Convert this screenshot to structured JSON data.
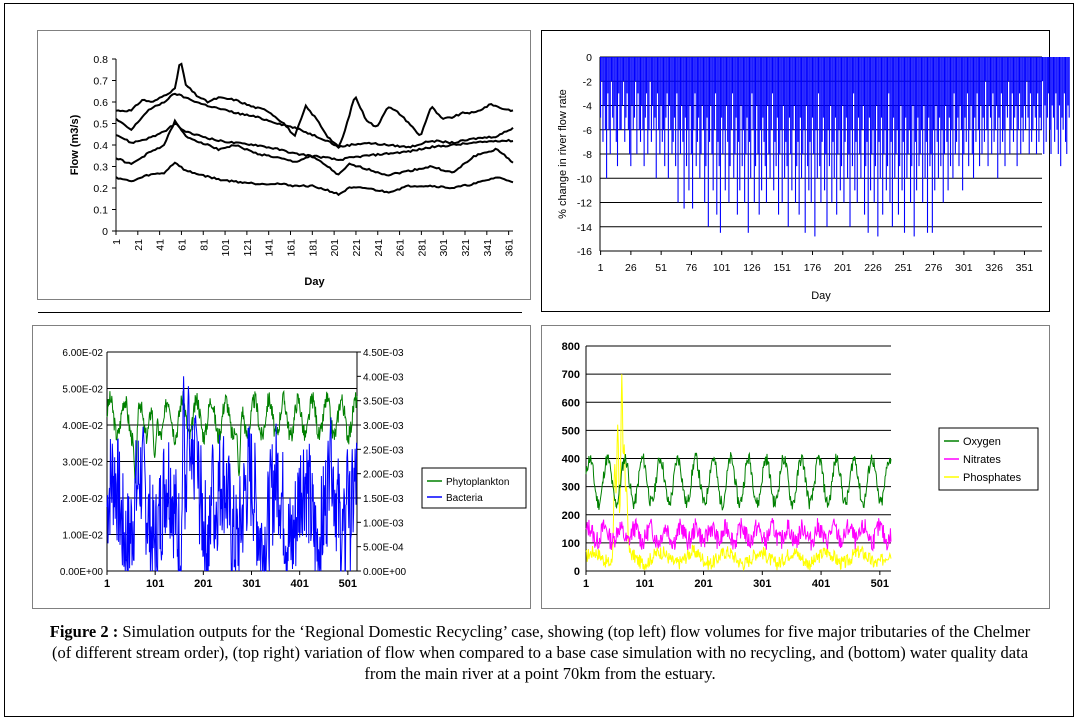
{
  "caption": {
    "label": "Figure 2 :",
    "text": " Simulation outputs for the ‘Regional Domestic Recycling’ case, showing  (top left) flow volumes for five major tributaries of the Chelmer (of different stream order), (top right) variation of flow when compared to a base case simulation with no recycling, and (bottom) water quality data from the main river at a point 70km from the estuary."
  },
  "chart_data": [
    {
      "id": "flow",
      "type": "line",
      "title": "",
      "xlabel": "Day",
      "ylabel": "Flow (m3/s)",
      "ylim": [
        0,
        0.8
      ],
      "yticks": [
        "0",
        "0.1",
        "0.2",
        "0.3",
        "0.4",
        "0.5",
        "0.6",
        "0.7",
        "0.8"
      ],
      "xticks": [
        "1",
        "21",
        "41",
        "61",
        "81",
        "101",
        "121",
        "141",
        "161",
        "181",
        "201",
        "221",
        "241",
        "261",
        "281",
        "301",
        "321",
        "341",
        "361"
      ],
      "xlim": [
        1,
        365
      ],
      "grid": false,
      "color": "#000000",
      "series": [
        {
          "x": [
            1,
            15,
            25,
            35,
            45,
            55,
            60,
            65,
            75,
            85,
            95,
            110,
            125,
            140,
            155,
            165,
            175,
            185,
            195,
            205,
            210,
            220,
            230,
            240,
            250,
            260,
            270,
            280,
            290,
            300,
            310,
            320,
            330,
            345,
            355,
            365
          ],
          "values": [
            0.56,
            0.56,
            0.61,
            0.6,
            0.63,
            0.66,
            0.8,
            0.68,
            0.63,
            0.6,
            0.62,
            0.61,
            0.58,
            0.56,
            0.5,
            0.44,
            0.58,
            0.52,
            0.44,
            0.39,
            0.45,
            0.63,
            0.52,
            0.48,
            0.58,
            0.55,
            0.5,
            0.44,
            0.58,
            0.52,
            0.53,
            0.55,
            0.55,
            0.59,
            0.57,
            0.56
          ]
        },
        {
          "x": [
            1,
            15,
            30,
            45,
            55,
            65,
            80,
            95,
            110,
            130,
            150,
            165,
            180,
            195,
            205,
            215,
            230,
            250,
            270,
            290,
            310,
            330,
            350,
            365
          ],
          "values": [
            0.52,
            0.47,
            0.56,
            0.6,
            0.64,
            0.62,
            0.59,
            0.57,
            0.55,
            0.53,
            0.5,
            0.48,
            0.45,
            0.42,
            0.39,
            0.4,
            0.41,
            0.4,
            0.39,
            0.42,
            0.41,
            0.43,
            0.44,
            0.48
          ]
        },
        {
          "x": [
            1,
            15,
            30,
            45,
            55,
            65,
            80,
            95,
            110,
            130,
            150,
            165,
            180,
            195,
            205,
            215,
            230,
            250,
            270,
            290,
            310,
            330,
            350,
            365
          ],
          "values": [
            0.45,
            0.41,
            0.43,
            0.46,
            0.5,
            0.46,
            0.44,
            0.42,
            0.41,
            0.4,
            0.38,
            0.36,
            0.35,
            0.34,
            0.33,
            0.34,
            0.35,
            0.36,
            0.37,
            0.39,
            0.4,
            0.41,
            0.42,
            0.42
          ]
        },
        {
          "x": [
            1,
            15,
            30,
            45,
            55,
            65,
            80,
            95,
            110,
            130,
            150,
            165,
            180,
            195,
            205,
            215,
            230,
            250,
            270,
            290,
            310,
            330,
            350,
            365
          ],
          "values": [
            0.34,
            0.31,
            0.36,
            0.4,
            0.51,
            0.44,
            0.41,
            0.38,
            0.4,
            0.36,
            0.34,
            0.32,
            0.35,
            0.3,
            0.26,
            0.31,
            0.29,
            0.26,
            0.28,
            0.3,
            0.27,
            0.35,
            0.38,
            0.32
          ]
        },
        {
          "x": [
            1,
            15,
            30,
            45,
            55,
            65,
            80,
            95,
            110,
            130,
            150,
            165,
            180,
            195,
            205,
            215,
            230,
            250,
            270,
            290,
            310,
            330,
            350,
            365
          ],
          "values": [
            0.25,
            0.23,
            0.26,
            0.27,
            0.32,
            0.28,
            0.26,
            0.24,
            0.23,
            0.22,
            0.22,
            0.21,
            0.21,
            0.19,
            0.17,
            0.2,
            0.2,
            0.18,
            0.21,
            0.21,
            0.2,
            0.22,
            0.25,
            0.23
          ]
        }
      ]
    },
    {
      "id": "pct",
      "type": "bar",
      "title": "",
      "xlabel": "Day",
      "ylabel": "% change in river flow rate",
      "ylim": [
        -16,
        0
      ],
      "yticks": [
        "0",
        "-2",
        "-4",
        "-6",
        "-8",
        "-10",
        "-12",
        "-14",
        "-16"
      ],
      "xticks": [
        "1",
        "26",
        "51",
        "76",
        "101",
        "126",
        "151",
        "176",
        "201",
        "226",
        "251",
        "276",
        "301",
        "326",
        "351"
      ],
      "xlim": [
        1,
        365
      ],
      "grid": "horizontal",
      "color": "#0000FF",
      "x_start": 1,
      "values": [
        -5,
        -2,
        -7,
        -4,
        -6,
        -10,
        -3,
        -6,
        -8,
        -2,
        -5,
        -6,
        -4,
        -7,
        -9,
        -3,
        -6,
        -6,
        -4,
        -2,
        -7,
        -5,
        -3,
        -6,
        -8,
        -9,
        -4,
        -6,
        -5,
        -2,
        -8,
        -3,
        -6,
        -7,
        -4,
        -6,
        -9,
        -5,
        -3,
        -8,
        -6,
        -2,
        -7,
        -4,
        -6,
        -5,
        -10,
        -3,
        -6,
        -8,
        -4,
        -7,
        -6,
        -9,
        -5,
        -3,
        -10,
        -4,
        -6,
        -8,
        -7,
        -5,
        -9,
        -3,
        -12,
        -6,
        -8,
        -4,
        -7,
        -12.5,
        -5,
        -9,
        -6,
        -11,
        -4,
        -8,
        -12.5,
        -6,
        -3,
        -9,
        -7,
        -5,
        -10,
        -8,
        -4,
        -6,
        -12,
        -9,
        -5,
        -14,
        -7,
        -4,
        -8,
        -11,
        -6,
        -3,
        -13,
        -7,
        -9,
        -14.5,
        -5,
        -8,
        -6,
        -11,
        -4,
        -7,
        -12,
        -9,
        -6,
        -3,
        -10,
        -8,
        -5,
        -13,
        -7,
        -11,
        -4,
        -9,
        -6,
        -12,
        -8,
        -5,
        -14.5,
        -7,
        -10,
        -3,
        -6,
        -12,
        -9,
        -4,
        -8,
        -13,
        -6,
        -11,
        -5,
        -7,
        -9,
        -12,
        -4,
        -8,
        -10,
        -6,
        -3,
        -11,
        -7,
        -9,
        -5,
        -13,
        -8,
        -6,
        -12,
        -4,
        -10,
        -7,
        -9,
        -14,
        -5,
        -8,
        -11,
        -6,
        -4,
        -12,
        -9,
        -7,
        -13,
        -5,
        -10,
        -8,
        -6,
        -14.5,
        -4,
        -9,
        -11,
        -7,
        -12,
        -5,
        -8,
        -14.8,
        -6,
        -10,
        -3,
        -9,
        -12,
        -7,
        -5,
        -11,
        -8,
        -14,
        -6,
        -9,
        -4,
        -12,
        -7,
        -10,
        -5,
        -13,
        -8,
        -6,
        -11,
        -9,
        -4,
        -12,
        -7,
        -5,
        -10,
        -8,
        -14,
        -6,
        -9,
        -3,
        -11,
        -7,
        -12,
        -5,
        -8,
        -10,
        -6,
        -4,
        -13,
        -9,
        -7,
        -14.5,
        -5,
        -11,
        -8,
        -6,
        -12,
        -9,
        -4,
        -14.8,
        -7,
        -10,
        -5,
        -13,
        -8,
        -6,
        -11,
        -9,
        -3,
        -12,
        -7,
        -14,
        -5,
        -10,
        -8,
        -6,
        -13,
        -9,
        -4,
        -11,
        -7,
        -14.5,
        -5,
        -10,
        -8,
        -6,
        -12,
        -9,
        -4,
        -14.8,
        -7,
        -11,
        -5,
        -9,
        -8,
        -6,
        -12,
        -4,
        -10,
        -7,
        -14.5,
        -5,
        -9,
        -8,
        -14.5,
        -6,
        -11,
        -4,
        -7,
        -10,
        -5,
        -9,
        -6,
        -12,
        -8,
        -4,
        -7,
        -11,
        -5,
        -9,
        -6,
        -10,
        -3,
        -8,
        -7,
        -5,
        -9,
        -4,
        -6,
        -11,
        -8,
        -5,
        -7,
        -3,
        -9,
        -6,
        -4,
        -8,
        -10,
        -5,
        -7,
        -3,
        -6,
        -9,
        -4,
        -8,
        -5,
        -7,
        -2,
        -6,
        -9,
        -4,
        -5,
        -8,
        -3,
        -7,
        -6,
        -4,
        -10,
        -5,
        -8,
        -3,
        -7,
        -6,
        -9,
        -4,
        -5,
        -2,
        -8,
        -6,
        -3,
        -7,
        -5,
        -4,
        -9,
        -6,
        -3,
        -8,
        -5,
        -7,
        -4,
        -6,
        -2,
        -5,
        -8,
        -3,
        -7,
        -6,
        -4,
        -5,
        -8,
        -3,
        -7,
        -5,
        -6,
        -2,
        -8,
        -4,
        -7,
        -5,
        -3,
        -6,
        -8,
        -4,
        -5,
        -7,
        -3,
        -6,
        -8,
        -4,
        -9,
        -5,
        -6,
        -3,
        -7,
        -8,
        -4,
        -5
      ]
    },
    {
      "id": "phyto",
      "type": "line",
      "title": "",
      "xlabel": "",
      "ylabel": "",
      "ylim": [
        0,
        0.06
      ],
      "y2lim": [
        0,
        0.0045
      ],
      "yticks": [
        "0.00E+00",
        "1.00E-02",
        "2.00E-02",
        "3.00E-02",
        "4.00E-02",
        "5.00E-02",
        "6.00E-02"
      ],
      "y2ticks": [
        "0.00E+00",
        "5.00E-04",
        "1.00E-03",
        "1.50E-03",
        "2.00E-03",
        "2.50E-03",
        "3.00E-03",
        "3.50E-03",
        "4.00E-03",
        "4.50E-03"
      ],
      "xticks": [
        "1",
        "101",
        "201",
        "301",
        "401",
        "501"
      ],
      "xlim": [
        1,
        520
      ],
      "grid": "horizontal",
      "legend": "right",
      "series": [
        {
          "name": "Phytoplankton",
          "axis": "left",
          "color": "#008000",
          "kind": "seasonal",
          "base": 0.042,
          "amp": 0.005,
          "period": 30,
          "noise": 0.0025,
          "seed": 3,
          "dips": [
            [
              60,
              0.024
            ],
            [
              100,
              0.031
            ],
            [
              275,
              0.026
            ]
          ]
        },
        {
          "name": "Bacteria",
          "axis": "right",
          "color": "#0000FF",
          "kind": "spiky",
          "base": 0.0009,
          "amp": 0.0007,
          "noise": 0.0012,
          "seed": 7,
          "peaks": [
            [
              160,
              0.004
            ],
            [
              170,
              0.0038
            ],
            [
              185,
              0.0032
            ],
            [
              220,
              0.0026
            ],
            [
              465,
              0.003
            ],
            [
              500,
              0.0025
            ]
          ]
        }
      ]
    },
    {
      "id": "quality",
      "type": "line",
      "title": "",
      "xlabel": "",
      "ylabel": "",
      "ylim": [
        0,
        800
      ],
      "yticks": [
        "0",
        "100",
        "200",
        "300",
        "400",
        "500",
        "600",
        "700",
        "800"
      ],
      "xticks": [
        "1",
        "101",
        "201",
        "301",
        "401",
        "501"
      ],
      "xlim": [
        1,
        520
      ],
      "grid": "horizontal",
      "legend": "right",
      "series": [
        {
          "name": "Oxygen",
          "color": "#008000",
          "kind": "seasonal",
          "base": 320,
          "amp": 80,
          "period": 30,
          "noise": 25,
          "seed": 11
        },
        {
          "name": "Nitrates",
          "color": "#FF00FF",
          "kind": "noisy",
          "base": 130,
          "amp": 25,
          "noise": 35,
          "seed": 13
        },
        {
          "name": "Phosphates",
          "color": "#FFFF00",
          "kind": "spiky",
          "base": 40,
          "amp": 20,
          "noise": 25,
          "seed": 17,
          "peaks": [
            [
              55,
              520
            ],
            [
              62,
              700
            ],
            [
              66,
              450
            ],
            [
              50,
              380
            ],
            [
              70,
              300
            ]
          ]
        }
      ]
    }
  ]
}
